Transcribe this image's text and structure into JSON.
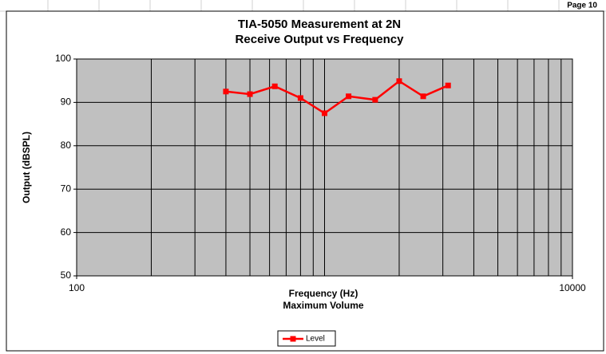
{
  "page_label": "Page 10",
  "chart_data": {
    "type": "line",
    "title": "TIA-5050 Measurement at 2N",
    "subtitle": "Receive Output vs Frequency",
    "x_label": "Frequency (Hz)",
    "x_sublabel": "Maximum Volume",
    "y_label": "Output (dBSPL)",
    "xscale": "log",
    "xlim": [
      100,
      10000
    ],
    "xticks": [
      100,
      10000
    ],
    "xminorticks": [
      200,
      300,
      400,
      500,
      600,
      700,
      800,
      900,
      1000,
      2000,
      3000,
      4000,
      5000,
      6000,
      7000,
      8000,
      9000
    ],
    "ylim": [
      50,
      100
    ],
    "yticks": [
      50,
      60,
      70,
      80,
      90,
      100
    ],
    "grid": true,
    "legend": "bottom",
    "x": [
      400,
      500,
      630,
      800,
      1000,
      1250,
      1600,
      2000,
      2500,
      3150
    ],
    "series": [
      {
        "name": "Level",
        "color": "#ff0000",
        "values": [
          92.5,
          91.9,
          93.7,
          91.0,
          87.5,
          91.4,
          90.6,
          94.9,
          91.4,
          93.9
        ]
      }
    ]
  }
}
